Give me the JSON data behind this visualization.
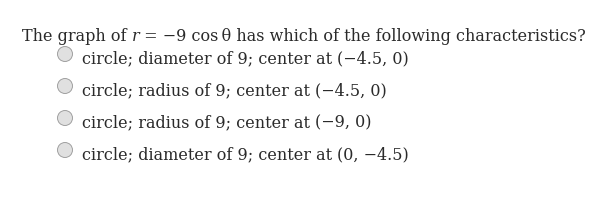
{
  "background_color": "#ffffff",
  "text_color": "#2a2a2a",
  "radio_fill": "#e0e0e0",
  "radio_edge": "#a0a0a0",
  "title_fontsize": 11.5,
  "option_fontsize": 11.5,
  "title_parts": [
    {
      "text": "The graph of ",
      "style": "normal",
      "weight": "normal"
    },
    {
      "text": "r",
      "style": "italic",
      "weight": "normal"
    },
    {
      "text": " = −9 cos θ has which of the following characteristics?",
      "style": "normal",
      "weight": "normal"
    }
  ],
  "options": [
    "circle; diameter of 9; center at  (−4.5, 0)",
    "circle; radius of 9; center at  (−4.5, 0)",
    "circle; radius of 9; center at  (−9, 0)",
    "circle; diameter of 9; center at  (0, −4.5)"
  ],
  "options_display": [
    [
      "circle; diameter of 9; center at ",
      "(−4.5, 0)"
    ],
    [
      "circle; radius of 9; center at ",
      "(−4.5, 0)"
    ],
    [
      "circle; radius of 9; center at ",
      "(−9, 0)"
    ],
    [
      "circle; diameter of 9; center at ",
      "(0, −4.5)"
    ]
  ]
}
